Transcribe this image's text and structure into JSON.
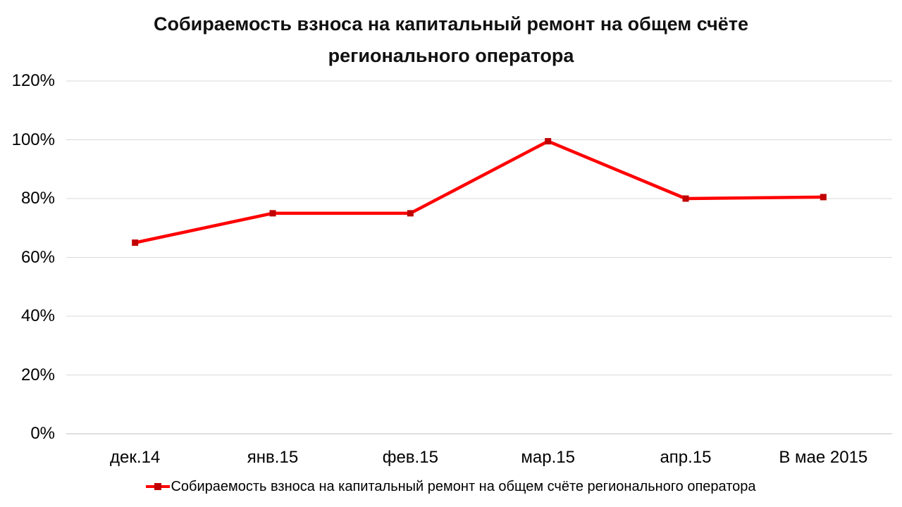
{
  "chart_data": {
    "type": "line",
    "title": "Собираемость взноса на капитальный ремонт на общем счёте регионального оператора",
    "categories": [
      "дек.14",
      "янв.15",
      "фев.15",
      "мар.15",
      "апр.15",
      "В мае 2015"
    ],
    "series": [
      {
        "name": "Собираемость взноса на капитальный ремонт на общем счёте регионального оператора",
        "values": [
          65,
          75,
          75,
          99.5,
          80,
          80.5
        ]
      }
    ],
    "y_ticks": [
      "0%",
      "20%",
      "40%",
      "60%",
      "80%",
      "100%",
      "120%"
    ],
    "ylim": [
      0,
      120
    ],
    "y_tick_step": 20,
    "xlabel": "",
    "ylabel": "",
    "grid": true,
    "legend_position": "bottom",
    "colors": {
      "line": "#FF0000",
      "marker": "#C00000",
      "gridline": "#D9D9D9",
      "axis_line": "#BFBFBF",
      "text": "#000000"
    }
  }
}
